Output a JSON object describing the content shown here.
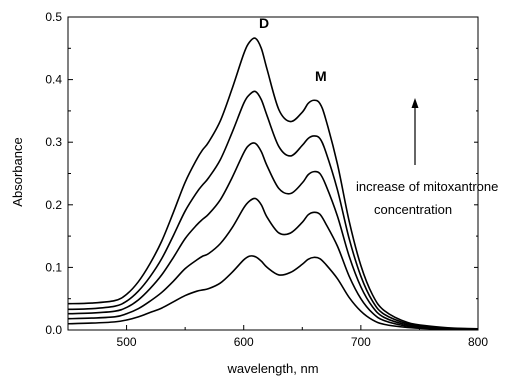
{
  "chart_data": {
    "type": "line",
    "title": "",
    "xlabel": "wavelength, nm",
    "ylabel": "Absorbance",
    "xlim": [
      450,
      800
    ],
    "ylim": [
      0.0,
      0.5
    ],
    "x_ticks": [
      500,
      600,
      700,
      800
    ],
    "x_tick_labels": [
      "500",
      "600",
      "700",
      "800"
    ],
    "y_ticks": [
      0.0,
      0.1,
      0.2,
      0.3,
      0.4,
      0.5
    ],
    "y_tick_labels": [
      "0.0",
      "0.1",
      "0.2",
      "0.3",
      "0.4",
      "0.5"
    ],
    "grid": false,
    "legend": "none",
    "annotations": {
      "peak_d": "D",
      "peak_m": "M",
      "arrow_text_line1": "increase of mitoxantrone",
      "arrow_text_line2": "concentration"
    },
    "series": [
      {
        "x": [
          450,
          470,
          490,
          500,
          510,
          520,
          530,
          540,
          550,
          560,
          565,
          570,
          580,
          590,
          600,
          605,
          610,
          615,
          620,
          630,
          640,
          650,
          655,
          660,
          665,
          670,
          680,
          690,
          700,
          710,
          720,
          740,
          760,
          780,
          800
        ],
        "values": [
          0.01,
          0.011,
          0.013,
          0.016,
          0.021,
          0.028,
          0.035,
          0.045,
          0.055,
          0.062,
          0.064,
          0.066,
          0.075,
          0.092,
          0.112,
          0.118,
          0.117,
          0.11,
          0.1,
          0.088,
          0.092,
          0.105,
          0.113,
          0.116,
          0.114,
          0.105,
          0.082,
          0.052,
          0.03,
          0.016,
          0.009,
          0.004,
          0.002,
          0.001,
          0.0005
        ]
      },
      {
        "x": [
          450,
          470,
          490,
          500,
          510,
          520,
          530,
          540,
          550,
          560,
          565,
          570,
          580,
          590,
          600,
          605,
          610,
          615,
          620,
          630,
          640,
          650,
          655,
          660,
          665,
          670,
          680,
          690,
          700,
          710,
          720,
          740,
          760,
          780,
          800
        ],
        "values": [
          0.018,
          0.019,
          0.021,
          0.026,
          0.034,
          0.046,
          0.06,
          0.078,
          0.098,
          0.112,
          0.118,
          0.122,
          0.138,
          0.163,
          0.195,
          0.206,
          0.21,
          0.2,
          0.18,
          0.155,
          0.155,
          0.172,
          0.184,
          0.188,
          0.185,
          0.17,
          0.134,
          0.086,
          0.05,
          0.027,
          0.015,
          0.006,
          0.003,
          0.0015,
          0.001
        ]
      },
      {
        "x": [
          450,
          470,
          490,
          500,
          510,
          520,
          530,
          540,
          550,
          560,
          565,
          570,
          580,
          590,
          600,
          605,
          610,
          615,
          620,
          630,
          640,
          650,
          655,
          660,
          665,
          670,
          680,
          690,
          700,
          710,
          720,
          740,
          760,
          780,
          800
        ],
        "values": [
          0.026,
          0.027,
          0.03,
          0.036,
          0.048,
          0.066,
          0.088,
          0.116,
          0.146,
          0.168,
          0.177,
          0.185,
          0.208,
          0.243,
          0.283,
          0.296,
          0.298,
          0.285,
          0.262,
          0.226,
          0.218,
          0.235,
          0.248,
          0.253,
          0.25,
          0.232,
          0.182,
          0.118,
          0.069,
          0.037,
          0.02,
          0.008,
          0.004,
          0.002,
          0.001
        ]
      },
      {
        "x": [
          450,
          470,
          490,
          500,
          510,
          520,
          530,
          540,
          550,
          560,
          565,
          570,
          580,
          590,
          600,
          605,
          610,
          615,
          620,
          630,
          640,
          650,
          655,
          660,
          665,
          670,
          680,
          690,
          700,
          710,
          720,
          740,
          760,
          780,
          800
        ],
        "values": [
          0.033,
          0.034,
          0.038,
          0.046,
          0.062,
          0.085,
          0.114,
          0.151,
          0.19,
          0.22,
          0.232,
          0.243,
          0.272,
          0.315,
          0.362,
          0.376,
          0.381,
          0.368,
          0.342,
          0.293,
          0.278,
          0.295,
          0.306,
          0.31,
          0.306,
          0.285,
          0.224,
          0.146,
          0.086,
          0.046,
          0.025,
          0.01,
          0.005,
          0.0025,
          0.0015
        ]
      },
      {
        "x": [
          450,
          470,
          490,
          500,
          510,
          520,
          530,
          540,
          550,
          560,
          565,
          570,
          580,
          590,
          600,
          605,
          610,
          615,
          620,
          630,
          640,
          650,
          655,
          660,
          665,
          670,
          680,
          690,
          700,
          710,
          720,
          740,
          760,
          780,
          800
        ],
        "values": [
          0.042,
          0.043,
          0.047,
          0.057,
          0.077,
          0.106,
          0.142,
          0.188,
          0.236,
          0.273,
          0.288,
          0.3,
          0.334,
          0.385,
          0.441,
          0.46,
          0.466,
          0.45,
          0.416,
          0.352,
          0.333,
          0.348,
          0.362,
          0.367,
          0.362,
          0.337,
          0.265,
          0.174,
          0.103,
          0.056,
          0.031,
          0.012,
          0.006,
          0.003,
          0.002
        ]
      }
    ]
  }
}
